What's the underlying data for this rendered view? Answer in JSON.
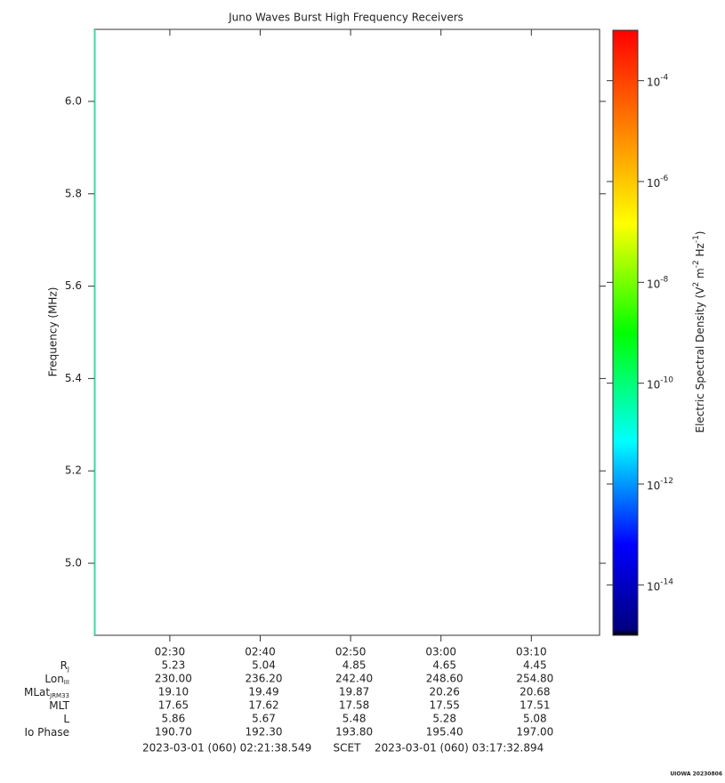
{
  "chart_data": {
    "type": "spectrogram",
    "title": "Juno Waves Burst High Frequency Receivers",
    "ylabel": "Frequency (MHz)",
    "ylim": [
      4.844,
      6.156
    ],
    "yticks": [
      {
        "value": 5,
        "label": "5.0"
      },
      5.2,
      5.4,
      5.6,
      5.8,
      {
        "value": 6,
        "label": "6.0"
      }
    ],
    "xlim": [
      141.642,
      197.548
    ],
    "xticks": [
      {
        "value": 150,
        "label": "02:30"
      },
      {
        "value": 160,
        "label": "02:40"
      },
      {
        "value": 170,
        "label": "02:50"
      },
      {
        "value": 180,
        "label": "03:00"
      },
      {
        "value": 190,
        "label": "03:10"
      }
    ],
    "zscale": "log",
    "zlim": [
      1e-15,
      0.001
    ],
    "zticks": [
      {
        "value": 1e-14,
        "label": "10",
        "exponent": "-14"
      },
      {
        "value": 1e-12,
        "label": "10",
        "exponent": "-12"
      },
      {
        "value": 1e-10,
        "label": "10",
        "exponent": "-10"
      },
      {
        "value": 1e-08,
        "label": "10",
        "exponent": "-8"
      },
      {
        "value": 1e-06,
        "label": "10",
        "exponent": "-6"
      },
      {
        "value": 0.0001,
        "label": "10",
        "exponent": "-4"
      }
    ],
    "zlabel": [
      "Electric Spectral Density (V",
      "2",
      " m",
      "-2",
      " Hz",
      "-1",
      ")"
    ],
    "ephemeris": [
      {
        "label": "R",
        "sub": "J",
        "values": [
          "5.23",
          "5.04",
          "4.85",
          "4.65",
          "4.45"
        ]
      },
      {
        "label": "Lon",
        "sub": "III",
        "values": [
          "230.00",
          "236.20",
          "242.40",
          "248.60",
          "254.80"
        ]
      },
      {
        "label": "MLat",
        "sub": "JRM33",
        "values": [
          "19.10",
          "19.49",
          "19.87",
          "20.26",
          "20.68"
        ]
      },
      {
        "label": "MLT",
        "values": [
          "17.65",
          "17.62",
          "17.58",
          "17.55",
          "17.51"
        ]
      },
      {
        "label": "L",
        "values": [
          "5.86",
          "5.67",
          "5.48",
          "5.28",
          "5.08"
        ]
      },
      {
        "label": "Io Phase",
        "values": [
          "190.70",
          "192.30",
          "193.80",
          "195.40",
          "197.00"
        ]
      }
    ],
    "start": "2023-03-01 (060) 02:21:38.549",
    "timebase": "SCET",
    "end": "2023-03-01 (060) 03:17:32.894",
    "footer": "UIOWA 20230806"
  }
}
